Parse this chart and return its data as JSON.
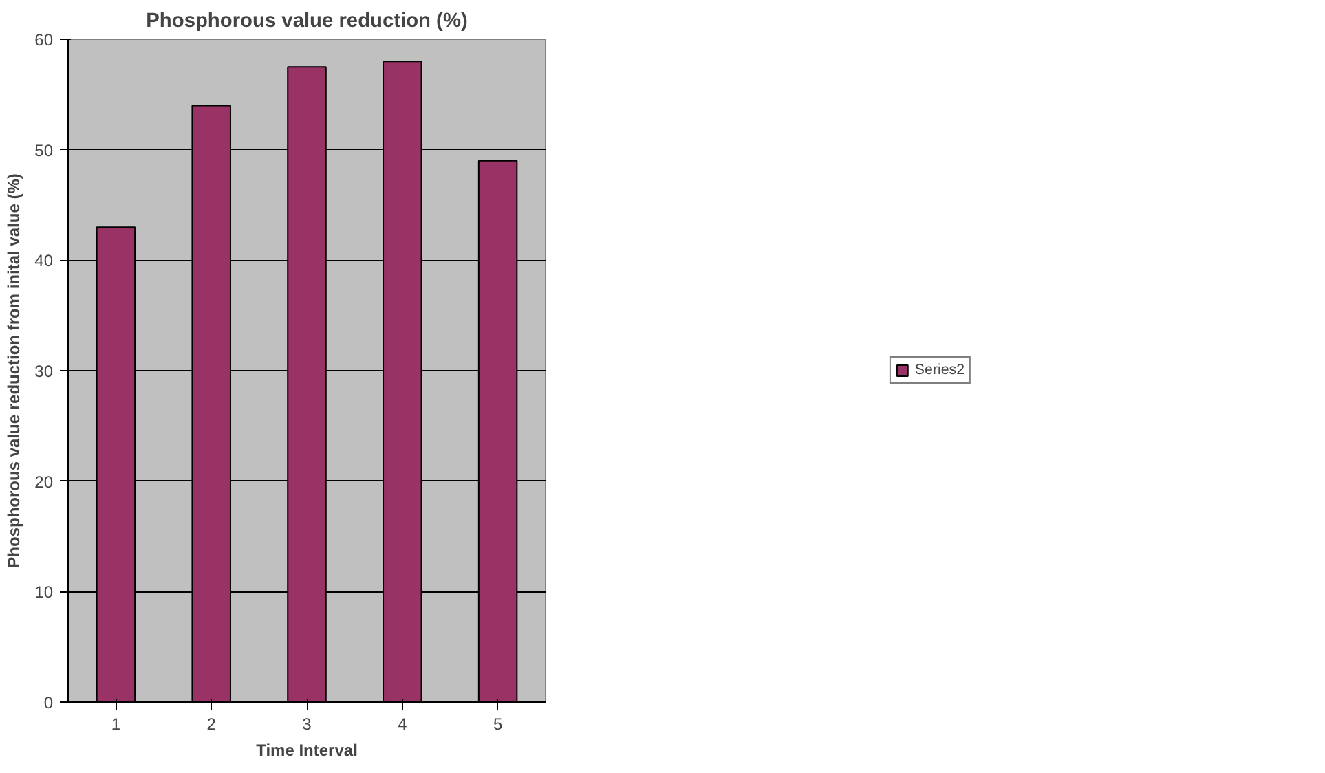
{
  "chart_data": {
    "type": "bar",
    "title": "Phosphorous value reduction (%)",
    "xlabel": "Time Interval",
    "ylabel": "Phosphorous value reduction from inital value (%)",
    "categories": [
      "1",
      "2",
      "3",
      "4",
      "5"
    ],
    "series": [
      {
        "name": "Series2",
        "color": "#993366",
        "values": [
          43,
          54,
          57.5,
          58,
          49
        ]
      }
    ],
    "ylim": [
      0,
      60
    ],
    "yticks": [
      0,
      10,
      20,
      30,
      40,
      50,
      60
    ],
    "grid": "y",
    "legend": "right"
  }
}
